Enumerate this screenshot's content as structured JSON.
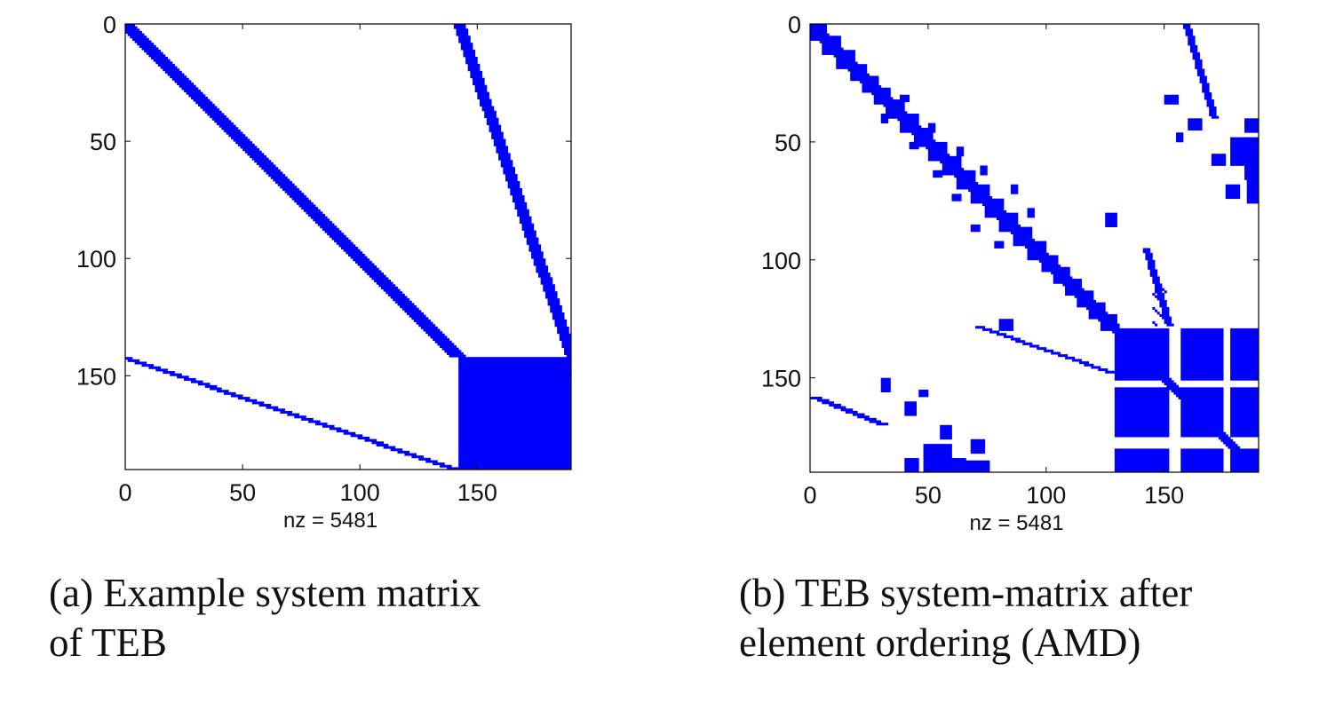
{
  "chart_data": [
    {
      "type": "heatmap",
      "subtype": "sparsity-pattern",
      "caption": "(a) Example system matrix\nof TEB",
      "xlabel": "nz = 5481",
      "nz": 5481,
      "n": 190,
      "xlim": [
        0,
        190
      ],
      "ylim": [
        190,
        0
      ],
      "xticks": [
        0,
        50,
        100,
        150
      ],
      "yticks": [
        0,
        50,
        100,
        150
      ],
      "marker_color": "#0000ff",
      "grid": false,
      "structure": {
        "diagonal_band": {
          "row_start": 0,
          "row_end": 142,
          "col_start": 0,
          "col_end": 142,
          "half_width": 3
        },
        "dense_block": {
          "rows": [
            142,
            190
          ],
          "cols": [
            142,
            190
          ]
        },
        "upper_coupling": {
          "rows": [
            0,
            142
          ],
          "cols": [
            142,
            190
          ]
        },
        "lower_coupling": {
          "rows": [
            142,
            190
          ],
          "cols": [
            0,
            142
          ]
        }
      }
    },
    {
      "type": "heatmap",
      "subtype": "sparsity-pattern",
      "caption": "(b) TEB system-matrix after\nelement ordering (AMD)",
      "xlabel": "nz = 5481",
      "nz": 5481,
      "n": 190,
      "xlim": [
        0,
        190
      ],
      "ylim": [
        190,
        0
      ],
      "xticks": [
        0,
        50,
        100,
        150
      ],
      "yticks": [
        0,
        50,
        100,
        150
      ],
      "marker_color": "#0000ff",
      "grid": false,
      "structure": {
        "diagonal_blocks": [
          [
            0,
            5
          ],
          [
            5,
            11
          ],
          [
            11,
            17
          ],
          [
            17,
            22
          ],
          [
            22,
            27
          ],
          [
            27,
            32
          ],
          [
            32,
            38
          ],
          [
            38,
            44
          ],
          [
            44,
            50
          ],
          [
            50,
            56
          ],
          [
            56,
            62
          ],
          [
            62,
            68
          ],
          [
            68,
            74
          ],
          [
            74,
            80
          ],
          [
            80,
            86
          ],
          [
            86,
            92
          ],
          [
            92,
            98
          ],
          [
            98,
            103
          ],
          [
            103,
            108
          ],
          [
            108,
            113
          ],
          [
            113,
            118
          ],
          [
            118,
            123
          ],
          [
            123,
            128
          ]
        ],
        "upper_coupling": {
          "rows": [
            0,
            128
          ],
          "cols": [
            158,
            170
          ]
        },
        "lower_coupling": {
          "rows": [
            158,
            190
          ],
          "cols": [
            0,
            30
          ]
        },
        "partial_coupling": {
          "rows": [
            128,
            148
          ],
          "cols": [
            70,
            128
          ]
        },
        "dense_blocks": [
          {
            "rows": [
              129,
              190
            ],
            "cols": [
              129,
              152
            ]
          },
          {
            "rows": [
              129,
              190
            ],
            "cols": [
              157,
              175
            ]
          },
          {
            "rows": [
              129,
              190
            ],
            "cols": [
              178,
              190
            ]
          }
        ],
        "block_gaps": [
          [
            151,
            154
          ],
          [
            175,
            180
          ]
        ],
        "scattered_blocks": [
          {
            "rows": [
              38,
              42
            ],
            "cols": [
              30,
              33
            ]
          },
          {
            "rows": [
              42,
              46
            ],
            "cols": [
              50,
              53
            ]
          },
          {
            "rows": [
              52,
              56
            ],
            "cols": [
              62,
              65
            ]
          },
          {
            "rows": [
              60,
              64
            ],
            "cols": [
              72,
              75
            ]
          },
          {
            "rows": [
              68,
              72
            ],
            "cols": [
              85,
              88
            ]
          },
          {
            "rows": [
              78,
              82
            ],
            "cols": [
              92,
              95
            ]
          },
          {
            "rows": [
              30,
              34
            ],
            "cols": [
              152,
              156
            ]
          },
          {
            "rows": [
              46,
              50
            ],
            "cols": [
              155,
              158
            ]
          },
          {
            "rows": [
              80,
              86
            ],
            "cols": [
              125,
              130
            ]
          },
          {
            "rows": [
              150,
              156
            ],
            "cols": [
              30,
              34
            ]
          },
          {
            "rows": [
              160,
              166
            ],
            "cols": [
              40,
              45
            ]
          },
          {
            "rows": [
              170,
              176
            ],
            "cols": [
              55,
              60
            ]
          },
          {
            "rows": [
              176,
              182
            ],
            "cols": [
              68,
              74
            ]
          },
          {
            "rows": [
              184,
              190
            ],
            "cols": [
              40,
              46
            ]
          },
          {
            "rows": [
              184,
              190
            ],
            "cols": [
              60,
              66
            ]
          },
          {
            "rows": [
              48,
              60
            ],
            "cols": [
              178,
              190
            ]
          },
          {
            "rows": [
              66,
              76
            ],
            "cols": [
              185,
              190
            ]
          }
        ]
      }
    }
  ]
}
